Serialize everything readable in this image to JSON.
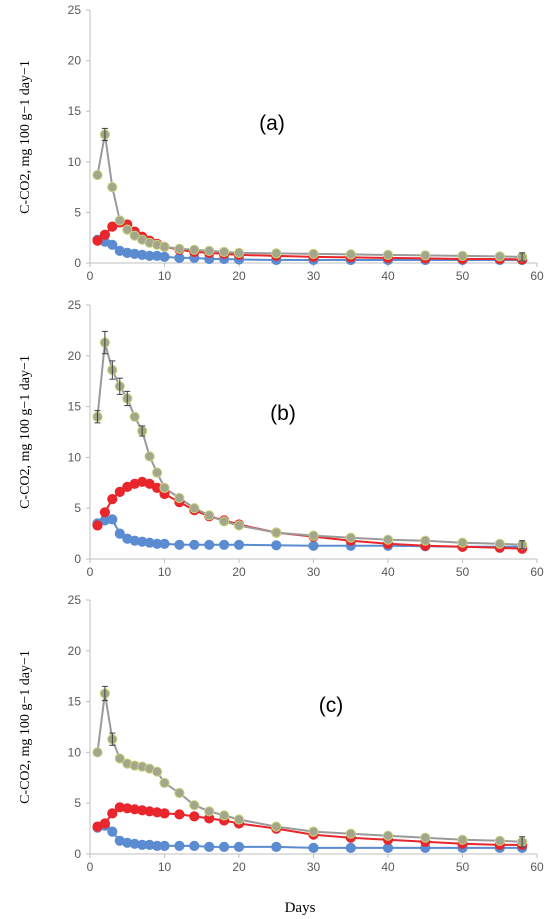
{
  "figure": {
    "xlabel": "Days",
    "ylabel": "C-CO2, mg 100 g−1 day−1"
  },
  "chart_data": [
    {
      "type": "line",
      "panel_label": "(a)",
      "xlim": [
        0,
        60
      ],
      "ylim": [
        0,
        25
      ],
      "xticks": [
        0,
        10,
        20,
        30,
        40,
        50,
        60
      ],
      "yticks": [
        0,
        5,
        10,
        15,
        20,
        25
      ],
      "series": [
        {
          "color": "#5B8BD0",
          "x": [
            1,
            2,
            3,
            4,
            5,
            6,
            7,
            8,
            9,
            10,
            12,
            14,
            16,
            18,
            20,
            25,
            30,
            35,
            40,
            45,
            50,
            55,
            58
          ],
          "values": [
            2.3,
            2.1,
            1.8,
            1.2,
            1.0,
            0.9,
            0.8,
            0.7,
            0.7,
            0.6,
            0.5,
            0.5,
            0.4,
            0.4,
            0.35,
            0.3,
            0.3,
            0.3,
            0.3,
            0.3,
            0.3,
            0.3,
            0.3
          ]
        },
        {
          "color": "#E8262B",
          "x": [
            1,
            2,
            3,
            4,
            5,
            6,
            7,
            8,
            9,
            10,
            12,
            14,
            16,
            18,
            20,
            25,
            30,
            35,
            40,
            45,
            50,
            55,
            58
          ],
          "values": [
            2.2,
            2.8,
            3.6,
            4.0,
            3.8,
            3.1,
            2.6,
            2.2,
            1.9,
            1.6,
            1.3,
            1.1,
            1.0,
            0.9,
            0.8,
            0.7,
            0.6,
            0.55,
            0.5,
            0.45,
            0.4,
            0.4,
            0.35
          ]
        },
        {
          "color": "#A3A68C",
          "x": [
            1,
            2,
            3,
            4,
            5,
            6,
            7,
            8,
            9,
            10,
            12,
            14,
            16,
            18,
            20,
            25,
            30,
            35,
            40,
            45,
            50,
            55,
            58
          ],
          "values": [
            8.7,
            12.7,
            7.5,
            4.2,
            3.3,
            2.7,
            2.3,
            2.0,
            1.8,
            1.6,
            1.4,
            1.3,
            1.2,
            1.1,
            1.0,
            0.95,
            0.9,
            0.85,
            0.8,
            0.75,
            0.7,
            0.65,
            0.6
          ],
          "error_bars": [
            {
              "x": 2,
              "y": 12.7,
              "err": 0.6
            },
            {
              "x": 58,
              "y": 0.6,
              "err": 0.4
            }
          ]
        }
      ]
    },
    {
      "type": "line",
      "panel_label": "(b)",
      "xlim": [
        0,
        60
      ],
      "ylim": [
        0,
        25
      ],
      "xticks": [
        0,
        10,
        20,
        30,
        40,
        50,
        60
      ],
      "yticks": [
        0,
        5,
        10,
        15,
        20,
        25
      ],
      "series": [
        {
          "color": "#5B8BD0",
          "x": [
            1,
            2,
            3,
            4,
            5,
            6,
            7,
            8,
            9,
            10,
            12,
            14,
            16,
            18,
            20,
            25,
            30,
            35,
            40,
            45,
            50,
            55,
            58
          ],
          "values": [
            3.5,
            3.8,
            3.9,
            2.5,
            2.0,
            1.8,
            1.7,
            1.6,
            1.5,
            1.5,
            1.4,
            1.4,
            1.4,
            1.4,
            1.4,
            1.35,
            1.3,
            1.3,
            1.3,
            1.25,
            1.2,
            1.2,
            1.2
          ]
        },
        {
          "color": "#E8262B",
          "x": [
            1,
            2,
            3,
            4,
            5,
            6,
            7,
            8,
            9,
            10,
            12,
            14,
            16,
            18,
            20,
            25,
            30,
            35,
            40,
            45,
            50,
            55,
            58
          ],
          "values": [
            3.3,
            4.6,
            5.9,
            6.6,
            7.1,
            7.4,
            7.6,
            7.4,
            7.0,
            6.4,
            5.6,
            4.8,
            4.2,
            3.8,
            3.4,
            2.6,
            2.2,
            1.8,
            1.5,
            1.3,
            1.2,
            1.1,
            1.0
          ]
        },
        {
          "color": "#A3A68C",
          "x": [
            1,
            2,
            3,
            4,
            5,
            6,
            7,
            8,
            9,
            10,
            12,
            14,
            16,
            18,
            20,
            25,
            30,
            35,
            40,
            45,
            50,
            55,
            58
          ],
          "values": [
            14.0,
            21.3,
            18.6,
            17.0,
            15.8,
            14.0,
            12.6,
            10.1,
            8.5,
            7.0,
            6.0,
            5.0,
            4.3,
            3.7,
            3.3,
            2.6,
            2.3,
            2.1,
            1.9,
            1.8,
            1.6,
            1.5,
            1.4
          ],
          "error_bars": [
            {
              "x": 1,
              "y": 14.0,
              "err": 0.6
            },
            {
              "x": 2,
              "y": 21.3,
              "err": 1.1
            },
            {
              "x": 3,
              "y": 18.6,
              "err": 0.9
            },
            {
              "x": 4,
              "y": 17.0,
              "err": 0.8
            },
            {
              "x": 5,
              "y": 15.8,
              "err": 0.7
            },
            {
              "x": 7,
              "y": 12.6,
              "err": 0.5
            },
            {
              "x": 58,
              "y": 1.4,
              "err": 0.4
            }
          ]
        }
      ]
    },
    {
      "type": "line",
      "panel_label": "(c)",
      "xlim": [
        0,
        60
      ],
      "ylim": [
        0,
        25
      ],
      "xticks": [
        0,
        10,
        20,
        30,
        40,
        50,
        60
      ],
      "yticks": [
        0,
        5,
        10,
        15,
        20,
        25
      ],
      "series": [
        {
          "color": "#5B8BD0",
          "x": [
            1,
            2,
            3,
            4,
            5,
            6,
            7,
            8,
            9,
            10,
            12,
            14,
            16,
            18,
            20,
            25,
            30,
            35,
            40,
            45,
            50,
            55,
            58
          ],
          "values": [
            2.6,
            2.8,
            2.2,
            1.3,
            1.1,
            1.0,
            0.9,
            0.9,
            0.8,
            0.8,
            0.8,
            0.8,
            0.7,
            0.7,
            0.7,
            0.7,
            0.6,
            0.6,
            0.6,
            0.6,
            0.6,
            0.6,
            0.6
          ]
        },
        {
          "color": "#E8262B",
          "x": [
            1,
            2,
            3,
            4,
            5,
            6,
            7,
            8,
            9,
            10,
            12,
            14,
            16,
            18,
            20,
            25,
            30,
            35,
            40,
            45,
            50,
            55,
            58
          ],
          "values": [
            2.7,
            3.0,
            4.0,
            4.6,
            4.5,
            4.4,
            4.3,
            4.2,
            4.1,
            4.0,
            3.9,
            3.7,
            3.5,
            3.3,
            3.0,
            2.5,
            1.9,
            1.6,
            1.4,
            1.2,
            1.0,
            0.9,
            0.9
          ]
        },
        {
          "color": "#A3A68C",
          "x": [
            1,
            2,
            3,
            4,
            5,
            6,
            7,
            8,
            9,
            10,
            12,
            14,
            16,
            18,
            20,
            25,
            30,
            35,
            40,
            45,
            50,
            55,
            58
          ],
          "values": [
            10.0,
            15.8,
            11.3,
            9.4,
            8.9,
            8.7,
            8.6,
            8.4,
            8.1,
            7.0,
            6.0,
            4.8,
            4.2,
            3.8,
            3.4,
            2.7,
            2.2,
            2.0,
            1.8,
            1.6,
            1.4,
            1.3,
            1.2
          ],
          "error_bars": [
            {
              "x": 2,
              "y": 15.8,
              "err": 0.7
            },
            {
              "x": 3,
              "y": 11.3,
              "err": 0.6
            },
            {
              "x": 58,
              "y": 1.2,
              "err": 0.5
            }
          ]
        }
      ]
    }
  ]
}
